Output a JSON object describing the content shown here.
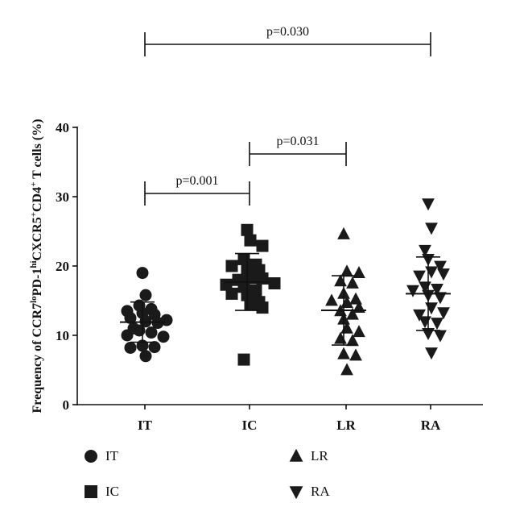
{
  "chart_data": {
    "type": "scatter",
    "title": "",
    "ylabel": "Frequency of CCR7loPD-1hiCXCR5+CD4+ T cells (%)",
    "ylabel_parts": [
      {
        "t": "Frequency of CCR7",
        "s": ""
      },
      {
        "t": "lo",
        "s": "sup"
      },
      {
        "t": "PD-1",
        "s": ""
      },
      {
        "t": "hi",
        "s": "sup"
      },
      {
        "t": "CXCR5",
        "s": ""
      },
      {
        "t": "+",
        "s": "sup"
      },
      {
        "t": "CD4",
        "s": ""
      },
      {
        "t": "+",
        "s": "sup"
      },
      {
        "t": " T cells (%)",
        "s": ""
      }
    ],
    "ylim": [
      0,
      40
    ],
    "yticks": [
      "0",
      "10",
      "20",
      "30",
      "40"
    ],
    "categories": [
      "IT",
      "IC",
      "LR",
      "RA"
    ],
    "series": [
      {
        "name": "IT",
        "marker": "circle",
        "values": [
          19.0,
          15.8,
          14.3,
          13.8,
          13.5,
          13.2,
          13.0,
          12.5,
          12.2,
          12.0,
          11.8,
          11.0,
          10.7,
          10.4,
          10.0,
          9.8,
          8.5,
          8.3,
          8.2,
          7.0
        ],
        "mean": 11.9,
        "sd": 2.9
      },
      {
        "name": "IC",
        "marker": "square",
        "values": [
          25.2,
          23.7,
          22.9,
          21.0,
          20.2,
          20.0,
          19.6,
          19.4,
          18.3,
          18.2,
          18.0,
          17.5,
          17.3,
          17.0,
          16.5,
          16.0,
          15.8,
          14.8,
          14.5,
          14.0,
          6.5
        ],
        "mean": 17.7,
        "sd": 4.1
      },
      {
        "name": "LR",
        "marker": "triangle-up",
        "values": [
          24.6,
          19.2,
          19.0,
          17.8,
          17.5,
          16.0,
          15.2,
          15.0,
          14.7,
          14.0,
          13.5,
          13.0,
          12.3,
          11.0,
          10.5,
          9.5,
          9.2,
          7.3,
          7.1,
          5.0
        ],
        "mean": 13.6,
        "sd": 5.0
      },
      {
        "name": "RA",
        "marker": "triangle-down",
        "values": [
          29.0,
          25.5,
          22.3,
          21.0,
          20.0,
          19.2,
          18.9,
          18.6,
          17.0,
          16.7,
          16.5,
          15.8,
          15.5,
          14.0,
          13.3,
          13.0,
          12.0,
          11.8,
          10.3,
          10.0,
          7.5
        ],
        "mean": 16.0,
        "sd": 5.3
      }
    ],
    "comparisons": [
      {
        "from": "IT",
        "to": "RA",
        "label": "p=0.030"
      },
      {
        "from": "IT",
        "to": "IC",
        "label": "p=0.001"
      },
      {
        "from": "IC",
        "to": "LR",
        "label": "p=0.031"
      }
    ],
    "legend": [
      {
        "label": "IT",
        "marker": "circle"
      },
      {
        "label": "LR",
        "marker": "triangle-up"
      },
      {
        "label": "IC",
        "marker": "square"
      },
      {
        "label": "RA",
        "marker": "triangle-down"
      }
    ],
    "legend_position": "bottom",
    "grid": false
  },
  "colors": {
    "marker": "#1a1a1a",
    "axis": "#111111"
  }
}
